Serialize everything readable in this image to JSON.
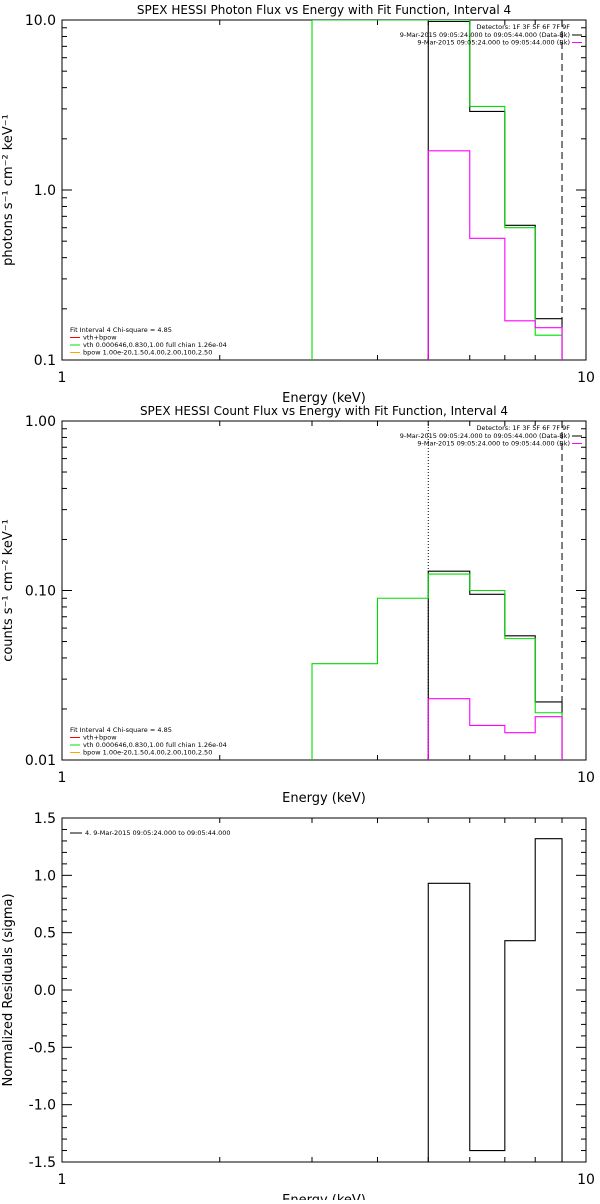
{
  "colors": {
    "background": "#ffffff",
    "axes": "#000000",
    "data": "#000000",
    "total": "#ff0000",
    "vth": "#00dd00",
    "bpow": "#ffa500",
    "background_series": "#ff00ff"
  },
  "chart_data": [
    {
      "type": "line",
      "title": "SPEX HESSI Photon Flux vs Energy with Fit Function, Interval 4",
      "xlabel": "Energy (keV)",
      "ylabel": "photons s⁻¹ cm⁻² keV⁻¹",
      "xscale": "log",
      "yscale": "log",
      "xlim": [
        1,
        10
      ],
      "ylim": [
        0.1,
        10
      ],
      "xticks": [
        {
          "v": 1,
          "label": "1"
        },
        {
          "v": 10,
          "label": "10"
        }
      ],
      "yticks": [
        {
          "v": 0.1,
          "label": "0.1"
        },
        {
          "v": 1,
          "label": "1.0"
        },
        {
          "v": 10,
          "label": "10.0"
        }
      ],
      "legend_top_right": {
        "header": "Detectors: 1F 3F 5F 6F 7F 9F",
        "entries": [
          {
            "text": "9-Mar-2015 09:05:24.000 to 09:05:44.000 (Data-Bk)",
            "color": "#000000"
          },
          {
            "text": "9-Mar-2015 09:05:24.000 to 09:05:44.000 (Bk)",
            "color": "#ff00ff"
          }
        ]
      },
      "legend_bottom_left": {
        "header": "Fit Interval  4   Chi-square = 4.85",
        "entries": [
          {
            "text": "vth+bpow",
            "color": "#ff0000"
          },
          {
            "text": "vth 0.000646,0.830,1.00  full chian 1.26e-04",
            "color": "#00dd00"
          },
          {
            "text": "bpow 1.00e-20,1.50,4.00,2.00,100,2.50",
            "color": "#ffa500"
          }
        ]
      },
      "fit_range": [
        5,
        9
      ],
      "dashed_lines": [
        9
      ],
      "dotted_lines": [],
      "series": [
        {
          "color": "#000000",
          "edges": [
            5,
            6,
            7,
            8,
            9
          ],
          "values": [
            9.8,
            2.9,
            0.62,
            0.175
          ]
        },
        {
          "color": "#00dd00",
          "edges": [
            3,
            4,
            5,
            6,
            7,
            8,
            9
          ],
          "values": [
            10,
            10,
            10,
            3.1,
            0.6,
            0.14
          ]
        },
        {
          "color": "#ff00ff",
          "edges": [
            5,
            6,
            7,
            8,
            9
          ],
          "values": [
            1.7,
            0.52,
            0.17,
            0.155
          ]
        }
      ]
    },
    {
      "type": "line",
      "title": "SPEX HESSI Count Flux vs Energy with Fit Function, Interval 4",
      "xlabel": "Energy (keV)",
      "ylabel": "counts s⁻¹ cm⁻² keV⁻¹",
      "xscale": "log",
      "yscale": "log",
      "xlim": [
        1,
        10
      ],
      "ylim": [
        0.01,
        1
      ],
      "xticks": [
        {
          "v": 1,
          "label": "1"
        },
        {
          "v": 10,
          "label": "10"
        }
      ],
      "yticks": [
        {
          "v": 0.01,
          "label": "0.01"
        },
        {
          "v": 0.1,
          "label": "0.10"
        },
        {
          "v": 1,
          "label": "1.00"
        }
      ],
      "legend_top_right": {
        "header": "Detectors: 1F 3F 5F 6F 7F 9F",
        "entries": [
          {
            "text": "9-Mar-2015 09:05:24.000 to 09:05:44.000 (Data-Bk)",
            "color": "#000000"
          },
          {
            "text": "9-Mar-2015 09:05:24.000 to 09:05:44.000 (Bk)",
            "color": "#ff00ff"
          }
        ]
      },
      "legend_bottom_left": {
        "header": "Fit Interval  4   Chi-square = 4.85",
        "entries": [
          {
            "text": "vth+bpow",
            "color": "#ff0000"
          },
          {
            "text": "vth 0.000646,0.830,1.00  full chian 1.26e-04",
            "color": "#00dd00"
          },
          {
            "text": "bpow 1.00e-20,1.50,4.00,2.00,100,2.50",
            "color": "#ffa500"
          }
        ]
      },
      "fit_range": [
        5,
        9
      ],
      "dashed_lines": [
        9
      ],
      "dotted_lines": [
        5
      ],
      "series": [
        {
          "color": "#000000",
          "edges": [
            5,
            6,
            7,
            8,
            9
          ],
          "values": [
            0.13,
            0.095,
            0.054,
            0.022
          ]
        },
        {
          "color": "#00dd00",
          "edges": [
            3,
            4,
            5,
            6,
            7,
            8,
            9
          ],
          "values": [
            0.037,
            0.09,
            0.125,
            0.1,
            0.052,
            0.019
          ]
        },
        {
          "color": "#ff00ff",
          "edges": [
            5,
            6,
            7,
            8,
            9
          ],
          "values": [
            0.023,
            0.016,
            0.0145,
            0.018
          ]
        }
      ]
    },
    {
      "type": "line",
      "title": "",
      "xlabel": "Energy (keV)",
      "ylabel": "Normalized Residuals (sigma)",
      "xscale": "log",
      "yscale": "linear",
      "xlim": [
        1,
        10
      ],
      "ylim": [
        -1.5,
        1.5
      ],
      "xticks": [
        {
          "v": 1,
          "label": "1"
        },
        {
          "v": 10,
          "label": "10"
        }
      ],
      "yticks": [
        {
          "v": -1.5,
          "label": "-1.5"
        },
        {
          "v": -1.0,
          "label": "-1.0"
        },
        {
          "v": -0.5,
          "label": "-0.5"
        },
        {
          "v": 0.0,
          "label": "0.0"
        },
        {
          "v": 0.5,
          "label": "0.5"
        },
        {
          "v": 1.0,
          "label": "1.0"
        },
        {
          "v": 1.5,
          "label": "1.5"
        }
      ],
      "legend_top_left": {
        "entries": [
          {
            "text": "4.  9-Mar-2015 09:05:24.000 to 09:05:44.000",
            "color": "#000000"
          }
        ]
      },
      "series": [
        {
          "color": "#000000",
          "edges": [
            5,
            6,
            7,
            8,
            9
          ],
          "values": [
            0.93,
            -1.4,
            0.43,
            1.32
          ],
          "residual": true
        }
      ]
    }
  ]
}
